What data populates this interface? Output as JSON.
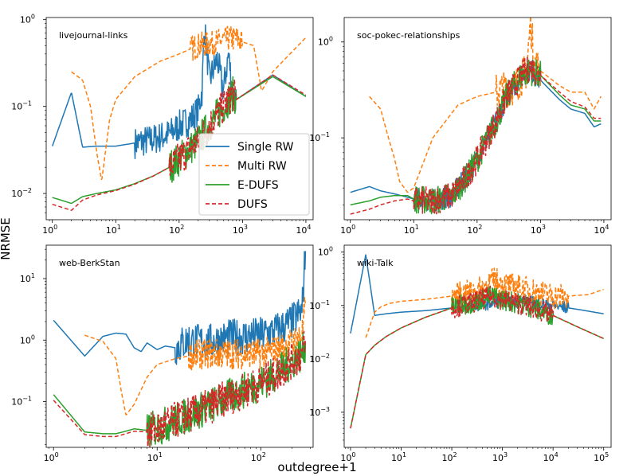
{
  "figure": {
    "xlabel": "outdegree+1",
    "ylabel": "NRMSE"
  },
  "legend": {
    "placement": "lower-right of top-left panel",
    "entries": [
      {
        "label": "Single RW",
        "color": "#1f77b4",
        "dash": "solid"
      },
      {
        "label": "Multi RW",
        "color": "#ff7f0e",
        "dash": "dashed"
      },
      {
        "label": "E-DUFS",
        "color": "#2ca02c",
        "dash": "solid"
      },
      {
        "label": "DUFS",
        "color": "#d62728",
        "dash": "dashed"
      }
    ]
  },
  "chart_data": [
    {
      "type": "line",
      "title": "livejournal-links",
      "xscale": "log",
      "yscale": "log",
      "xlim": [
        0.8,
        13000
      ],
      "ylim": [
        0.005,
        1.05
      ],
      "xticks": [
        {
          "v": 1,
          "base": "10",
          "exp": "0"
        },
        {
          "v": 10,
          "base": "10",
          "exp": "1"
        },
        {
          "v": 100,
          "base": "10",
          "exp": "2"
        },
        {
          "v": 1000,
          "base": "10",
          "exp": "3"
        },
        {
          "v": 10000,
          "base": "10",
          "exp": "4"
        }
      ],
      "yticks": [
        {
          "v": 0.01,
          "base": "10",
          "exp": "−2"
        },
        {
          "v": 0.1,
          "base": "10",
          "exp": "−1"
        },
        {
          "v": 1,
          "base": "10",
          "exp": "0"
        }
      ],
      "series": [
        {
          "name": "Single RW",
          "x": [
            1,
            2,
            3,
            5,
            10,
            20,
            40,
            70,
            100,
            150,
            200,
            230,
            250,
            300,
            400,
            500,
            600,
            700,
            800,
            3000,
            10000
          ],
          "y": [
            0.035,
            0.145,
            0.034,
            0.035,
            0.035,
            0.038,
            0.042,
            0.048,
            0.06,
            0.07,
            0.09,
            0.15,
            0.85,
            0.2,
            0.35,
            0.15,
            0.4,
            0.15,
            0.12,
            0.23,
            0.13
          ],
          "noise": [
            [
              20,
              800,
              0.18
            ]
          ]
        },
        {
          "name": "Multi RW",
          "x": [
            2,
            3,
            4,
            5,
            6,
            8,
            10,
            20,
            50,
            100,
            200,
            400,
            600,
            800,
            1000,
            1500,
            2000,
            3000,
            10000
          ],
          "y": [
            0.25,
            0.2,
            0.1,
            0.03,
            0.014,
            0.07,
            0.12,
            0.22,
            0.33,
            0.4,
            0.5,
            0.55,
            0.6,
            0.6,
            0.55,
            0.5,
            0.15,
            0.25,
            0.62
          ],
          "noise": [
            [
              150,
              1000,
              0.15
            ]
          ]
        },
        {
          "name": "E-DUFS",
          "x": [
            1,
            2,
            3,
            5,
            10,
            20,
            40,
            70,
            100,
            200,
            300,
            500,
            700,
            800,
            3000,
            10000
          ],
          "y": [
            0.009,
            0.0077,
            0.0092,
            0.01,
            0.011,
            0.013,
            0.016,
            0.02,
            0.025,
            0.04,
            0.06,
            0.1,
            0.14,
            0.12,
            0.22,
            0.13
          ],
          "noise": [
            [
              70,
              800,
              0.2
            ]
          ]
        },
        {
          "name": "DUFS",
          "x": [
            1,
            2,
            3,
            5,
            10,
            20,
            40,
            70,
            100,
            200,
            300,
            500,
            700,
            800,
            3000,
            10000
          ],
          "y": [
            0.0075,
            0.0064,
            0.0084,
            0.0096,
            0.0108,
            0.0128,
            0.016,
            0.02,
            0.025,
            0.04,
            0.06,
            0.1,
            0.14,
            0.12,
            0.23,
            0.135
          ],
          "noise": [
            [
              70,
              800,
              0.2
            ]
          ]
        }
      ]
    },
    {
      "type": "line",
      "title": "soc-pokec-relationships",
      "xscale": "log",
      "yscale": "log",
      "xlim": [
        0.8,
        13000
      ],
      "ylim": [
        0.014,
        1.8
      ],
      "xticks": [
        {
          "v": 1,
          "base": "10",
          "exp": "0"
        },
        {
          "v": 10,
          "base": "10",
          "exp": "1"
        },
        {
          "v": 100,
          "base": "10",
          "exp": "2"
        },
        {
          "v": 1000,
          "base": "10",
          "exp": "3"
        },
        {
          "v": 10000,
          "base": "10",
          "exp": "4"
        }
      ],
      "yticks": [
        {
          "v": 0.1,
          "base": "10",
          "exp": "−1"
        },
        {
          "v": 1,
          "base": "10",
          "exp": "0"
        }
      ],
      "series": [
        {
          "name": "Single RW",
          "x": [
            1,
            2,
            3,
            5,
            8,
            10,
            20,
            40,
            70,
            100,
            200,
            300,
            500,
            700,
            1000,
            2000,
            3000,
            5000,
            7000,
            9000
          ],
          "y": [
            0.027,
            0.031,
            0.028,
            0.026,
            0.024,
            0.023,
            0.022,
            0.025,
            0.04,
            0.06,
            0.15,
            0.28,
            0.45,
            0.5,
            0.4,
            0.25,
            0.2,
            0.18,
            0.13,
            0.14
          ],
          "noise": [
            [
              10,
              1000,
              0.12
            ]
          ]
        },
        {
          "name": "Multi RW",
          "x": [
            2,
            3,
            4,
            5,
            6,
            8,
            10,
            20,
            50,
            100,
            200,
            400,
            600,
            700,
            800,
            1000,
            2000,
            3000,
            5000,
            7000,
            9000
          ],
          "y": [
            0.27,
            0.2,
            0.1,
            0.06,
            0.035,
            0.027,
            0.03,
            0.1,
            0.22,
            0.27,
            0.3,
            0.35,
            0.5,
            1.6,
            0.6,
            0.5,
            0.35,
            0.3,
            0.3,
            0.2,
            0.27
          ],
          "noise": [
            [
              200,
              1000,
              0.2
            ]
          ]
        },
        {
          "name": "E-DUFS",
          "x": [
            1,
            2,
            3,
            5,
            8,
            10,
            20,
            40,
            70,
            100,
            200,
            300,
            500,
            700,
            1000,
            2000,
            3000,
            5000,
            7000,
            9000
          ],
          "y": [
            0.02,
            0.022,
            0.024,
            0.025,
            0.025,
            0.023,
            0.022,
            0.025,
            0.04,
            0.06,
            0.15,
            0.28,
            0.45,
            0.5,
            0.45,
            0.28,
            0.22,
            0.2,
            0.15,
            0.15
          ],
          "noise": [
            [
              10,
              1000,
              0.15
            ]
          ]
        },
        {
          "name": "DUFS",
          "x": [
            1,
            2,
            3,
            5,
            8,
            10,
            20,
            40,
            70,
            100,
            200,
            300,
            500,
            700,
            1000,
            2000,
            3000,
            5000,
            7000,
            9000
          ],
          "y": [
            0.016,
            0.018,
            0.02,
            0.022,
            0.023,
            0.022,
            0.022,
            0.025,
            0.04,
            0.06,
            0.15,
            0.28,
            0.45,
            0.55,
            0.45,
            0.3,
            0.24,
            0.21,
            0.16,
            0.16
          ],
          "noise": [
            [
              10,
              1000,
              0.15
            ]
          ]
        }
      ]
    },
    {
      "type": "line",
      "title": "web-BerkStan",
      "xscale": "log",
      "yscale": "log",
      "xlim": [
        0.85,
        320
      ],
      "ylim": [
        0.018,
        35
      ],
      "xticks": [
        {
          "v": 1,
          "base": "10",
          "exp": "0"
        },
        {
          "v": 10,
          "base": "10",
          "exp": "1"
        },
        {
          "v": 100,
          "base": "10",
          "exp": "2"
        }
      ],
      "yticks": [
        {
          "v": 0.1,
          "base": "10",
          "exp": "−1"
        },
        {
          "v": 1,
          "base": "10",
          "exp": "0"
        },
        {
          "v": 10,
          "base": "10",
          "exp": "1"
        }
      ],
      "series": [
        {
          "name": "Single RW",
          "x": [
            1,
            2,
            3,
            4,
            5,
            6,
            7,
            8,
            10,
            12,
            15,
            20,
            30,
            50,
            100,
            150,
            200,
            250,
            270
          ],
          "y": [
            2.1,
            0.55,
            1.15,
            1.3,
            1.25,
            0.75,
            0.65,
            0.9,
            0.7,
            0.8,
            0.75,
            1.0,
            0.9,
            1.1,
            1.2,
            1.5,
            2.0,
            3.0,
            28
          ],
          "noise": [
            [
              15,
              270,
              0.3
            ]
          ]
        },
        {
          "name": "Multi RW",
          "x": [
            2,
            3,
            4,
            4.5,
            5,
            6,
            8,
            10,
            15,
            20,
            30,
            50,
            100,
            150,
            200,
            250,
            270
          ],
          "y": [
            1.2,
            0.95,
            0.5,
            0.15,
            0.06,
            0.09,
            0.25,
            0.4,
            0.5,
            0.55,
            0.6,
            0.6,
            0.6,
            0.7,
            0.9,
            1.2,
            4.0
          ],
          "noise": [
            [
              20,
              270,
              0.25
            ]
          ]
        },
        {
          "name": "E-DUFS",
          "x": [
            1,
            2,
            3,
            4,
            5,
            6,
            8,
            10,
            15,
            20,
            30,
            50,
            100,
            150,
            200,
            250,
            270
          ],
          "y": [
            0.13,
            0.032,
            0.03,
            0.03,
            0.033,
            0.036,
            0.034,
            0.037,
            0.05,
            0.06,
            0.08,
            0.12,
            0.2,
            0.3,
            0.45,
            0.6,
            0.9
          ],
          "noise": [
            [
              8,
              270,
              0.3
            ]
          ]
        },
        {
          "name": "DUFS",
          "x": [
            1,
            2,
            3,
            4,
            5,
            6,
            8,
            10,
            15,
            20,
            30,
            50,
            100,
            150,
            200,
            250,
            270
          ],
          "y": [
            0.105,
            0.029,
            0.027,
            0.027,
            0.03,
            0.033,
            0.032,
            0.035,
            0.05,
            0.06,
            0.08,
            0.12,
            0.2,
            0.3,
            0.45,
            0.6,
            0.9
          ],
          "noise": [
            [
              8,
              270,
              0.3
            ]
          ]
        }
      ]
    },
    {
      "type": "line",
      "title": "wiki-Talk",
      "xscale": "log",
      "yscale": "log",
      "xlim": [
        0.75,
        140000
      ],
      "ylim": [
        0.00022,
        1.35
      ],
      "xticks": [
        {
          "v": 1,
          "base": "10",
          "exp": "0"
        },
        {
          "v": 10,
          "base": "10",
          "exp": "1"
        },
        {
          "v": 100,
          "base": "10",
          "exp": "2"
        },
        {
          "v": 1000,
          "base": "10",
          "exp": "3"
        },
        {
          "v": 10000,
          "base": "10",
          "exp": "4"
        },
        {
          "v": 100000,
          "base": "10",
          "exp": "5"
        }
      ],
      "yticks": [
        {
          "v": 0.001,
          "base": "10",
          "exp": "−3"
        },
        {
          "v": 0.01,
          "base": "10",
          "exp": "−2"
        },
        {
          "v": 0.1,
          "base": "10",
          "exp": "−1"
        },
        {
          "v": 1,
          "base": "10",
          "exp": "0"
        }
      ],
      "series": [
        {
          "name": "Single RW",
          "x": [
            1,
            2,
            3,
            5,
            10,
            30,
            100,
            300,
            1000,
            3000,
            10000,
            30000,
            100000
          ],
          "y": [
            0.03,
            0.9,
            0.065,
            0.07,
            0.075,
            0.08,
            0.09,
            0.1,
            0.12,
            0.12,
            0.1,
            0.085,
            0.07
          ],
          "noise": [
            [
              200,
              20000,
              0.12
            ]
          ]
        },
        {
          "name": "Multi RW",
          "x": [
            2,
            3,
            4,
            6,
            10,
            30,
            100,
            300,
            700,
            1000,
            3000,
            10000,
            20000,
            50000,
            100000
          ],
          "y": [
            0.025,
            0.075,
            0.095,
            0.11,
            0.12,
            0.13,
            0.15,
            0.18,
            0.3,
            0.25,
            0.2,
            0.15,
            0.15,
            0.16,
            0.2
          ],
          "noise": [
            [
              100,
              20000,
              0.25
            ]
          ]
        },
        {
          "name": "E-DUFS",
          "x": [
            1,
            2,
            3,
            5,
            10,
            30,
            100,
            300,
            600,
            1000,
            3000,
            10000,
            30000,
            100000
          ],
          "y": [
            0.0005,
            0.012,
            0.018,
            0.026,
            0.038,
            0.06,
            0.09,
            0.12,
            0.15,
            0.13,
            0.1,
            0.065,
            0.04,
            0.024
          ],
          "noise": [
            [
              100,
              10000,
              0.2
            ]
          ]
        },
        {
          "name": "DUFS",
          "x": [
            1,
            2,
            3,
            5,
            10,
            30,
            100,
            300,
            600,
            1000,
            3000,
            10000,
            30000,
            100000
          ],
          "y": [
            0.0005,
            0.012,
            0.018,
            0.026,
            0.038,
            0.06,
            0.09,
            0.12,
            0.15,
            0.13,
            0.1,
            0.065,
            0.04,
            0.024
          ],
          "noise": [
            [
              100,
              10000,
              0.2
            ]
          ]
        }
      ]
    }
  ]
}
